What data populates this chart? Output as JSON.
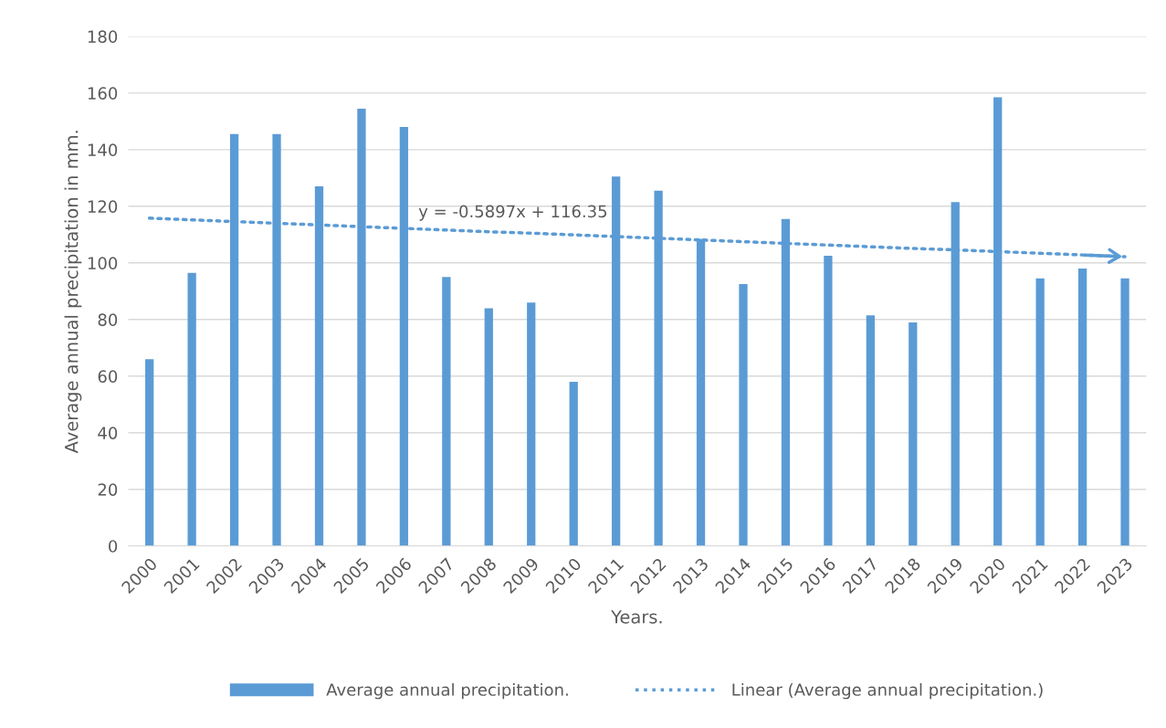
{
  "chart_data": {
    "type": "bar",
    "xlabel": "Years.",
    "ylabel": "Average annual precipitation in mm.",
    "categories": [
      "2000",
      "2001",
      "2002",
      "2003",
      "2004",
      "2005",
      "2006",
      "2007",
      "2008",
      "2009",
      "2010",
      "2011",
      "2012",
      "2013",
      "2014",
      "2015",
      "2016",
      "2017",
      "2018",
      "2019",
      "2020",
      "2021",
      "2022",
      "2023"
    ],
    "series": [
      {
        "name": "Average annual precipitation.",
        "color": "#5b9bd5",
        "values": [
          66,
          96.5,
          145.5,
          145.5,
          127,
          154.5,
          148,
          95,
          84,
          86,
          58,
          130.5,
          125.5,
          108.5,
          92.5,
          115.5,
          102.5,
          81.5,
          79,
          121.5,
          158.5,
          94.5,
          98,
          94.5
        ]
      },
      {
        "name": "Linear (Average annual precipitation.)",
        "type": "line",
        "line_style": "dotted",
        "color": "#5b9bd5",
        "values": [
          115.8,
          115.2,
          114.6,
          114.0,
          113.4,
          112.8,
          112.2,
          111.6,
          111.0,
          110.5,
          109.9,
          109.3,
          108.7,
          108.1,
          107.5,
          106.9,
          106.3,
          105.7,
          105.1,
          104.6,
          104.0,
          103.4,
          102.8,
          102.2
        ]
      }
    ],
    "annotations": [
      "y = -0.5897x + 116.35"
    ],
    "ylim": [
      0,
      180
    ],
    "yticks": [
      0,
      20,
      40,
      60,
      80,
      100,
      120,
      140,
      160,
      180
    ],
    "grid": "y",
    "legend": "bottom"
  }
}
